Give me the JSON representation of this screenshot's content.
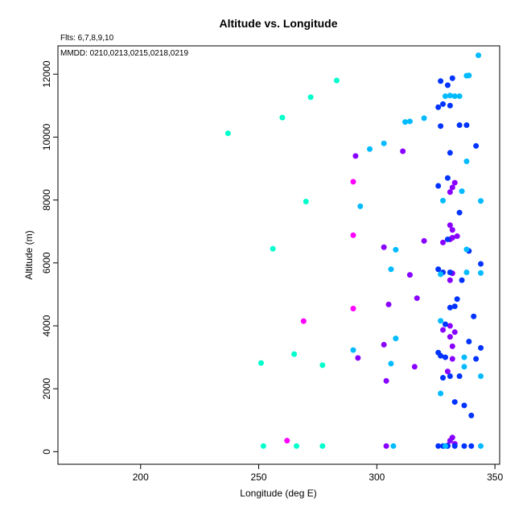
{
  "chart_data": {
    "type": "scatter",
    "title": "Altitude vs. Longitude",
    "xlabel": "Longitude (deg E)",
    "ylabel": "Altitude (m)",
    "xlim": [
      165,
      352
    ],
    "ylim": [
      -400,
      12900
    ],
    "x_ticks": [
      200,
      250,
      300,
      350
    ],
    "y_ticks": [
      0,
      2000,
      4000,
      6000,
      8000,
      10000,
      12000
    ],
    "grid": false,
    "annotations": {
      "flights": "Flts: 6,7,8,9,10",
      "dates": "MMDD: 0210,0213,0215,0218,0219"
    },
    "colors": {
      "flight_6": "#ff00ff",
      "flight_7": "#8800ff",
      "flight_8": "#0033ff",
      "flight_9": "#00bbff",
      "flight_10": "#00ffcc"
    },
    "series": [
      {
        "color_key": "flight_6",
        "points": [
          [
            262,
            350
          ],
          [
            269,
            4150
          ],
          [
            290,
            4550
          ],
          [
            290,
            6880
          ],
          [
            290,
            8580
          ]
        ]
      },
      {
        "color_key": "flight_7",
        "points": [
          [
            304,
            180
          ],
          [
            304,
            2250
          ],
          [
            303,
            3400
          ],
          [
            292,
            2980
          ],
          [
            305,
            4680
          ],
          [
            317,
            4880
          ],
          [
            314,
            5620
          ],
          [
            303,
            6500
          ],
          [
            320,
            6700
          ],
          [
            291,
            9400
          ],
          [
            311,
            9550
          ],
          [
            328,
            3870
          ],
          [
            330,
            2550
          ],
          [
            331,
            4000
          ],
          [
            332,
            3350
          ],
          [
            333,
            3800
          ],
          [
            331,
            3650
          ],
          [
            332,
            2950
          ],
          [
            316,
            2700
          ],
          [
            332,
            5670
          ],
          [
            331,
            5450
          ],
          [
            328,
            6650
          ],
          [
            332,
            6800
          ],
          [
            334,
            6850
          ],
          [
            331,
            7200
          ],
          [
            332,
            8400
          ],
          [
            331,
            8250
          ],
          [
            333,
            8550
          ],
          [
            332,
            7050
          ],
          [
            331,
            6750
          ],
          [
            332,
            450
          ],
          [
            331,
            350
          ],
          [
            333,
            250
          ],
          [
            330,
            200
          ]
        ]
      },
      {
        "color_key": "flight_8",
        "points": [
          [
            326,
            180
          ],
          [
            328,
            180
          ],
          [
            330,
            180
          ],
          [
            333,
            180
          ],
          [
            337,
            180
          ],
          [
            340,
            180
          ],
          [
            328,
            2350
          ],
          [
            329,
            3000
          ],
          [
            326,
            3150
          ],
          [
            327,
            3050
          ],
          [
            331,
            2400
          ],
          [
            335,
            2400
          ],
          [
            340,
            1150
          ],
          [
            333,
            1580
          ],
          [
            337,
            1470
          ],
          [
            342,
            2950
          ],
          [
            339,
            3500
          ],
          [
            344,
            3300
          ],
          [
            329,
            4050
          ],
          [
            331,
            4580
          ],
          [
            333,
            4620
          ],
          [
            334,
            4850
          ],
          [
            341,
            4300
          ],
          [
            326,
            5800
          ],
          [
            328,
            5700
          ],
          [
            331,
            5700
          ],
          [
            336,
            5450
          ],
          [
            339,
            6380
          ],
          [
            344,
            5970
          ],
          [
            330,
            6750
          ],
          [
            335,
            7600
          ],
          [
            326,
            8450
          ],
          [
            330,
            8700
          ],
          [
            331,
            9500
          ],
          [
            342,
            9720
          ],
          [
            326,
            10950
          ],
          [
            328,
            11050
          ],
          [
            331,
            11000
          ],
          [
            327,
            10350
          ],
          [
            335,
            10380
          ],
          [
            338,
            10380
          ],
          [
            327,
            11780
          ],
          [
            330,
            11650
          ],
          [
            332,
            11870
          ]
        ]
      },
      {
        "color_key": "flight_9",
        "points": [
          [
            307,
            180
          ],
          [
            329,
            180
          ],
          [
            344,
            180
          ],
          [
            327,
            1850
          ],
          [
            306,
            2800
          ],
          [
            337,
            2700
          ],
          [
            337,
            3000
          ],
          [
            344,
            2400
          ],
          [
            290,
            3230
          ],
          [
            308,
            3600
          ],
          [
            327,
            4160
          ],
          [
            338,
            5700
          ],
          [
            306,
            5800
          ],
          [
            344,
            5680
          ],
          [
            327,
            5640
          ],
          [
            308,
            6420
          ],
          [
            338,
            6430
          ],
          [
            293,
            7800
          ],
          [
            328,
            7980
          ],
          [
            344,
            7970
          ],
          [
            336,
            8280
          ],
          [
            297,
            9620
          ],
          [
            303,
            9800
          ],
          [
            338,
            9230
          ],
          [
            312,
            10480
          ],
          [
            314,
            10500
          ],
          [
            320,
            10600
          ],
          [
            329,
            11300
          ],
          [
            331,
            11320
          ],
          [
            333,
            11300
          ],
          [
            335,
            11300
          ],
          [
            338,
            11950
          ],
          [
            339,
            11960
          ],
          [
            343,
            12600
          ]
        ]
      },
      {
        "color_key": "flight_10",
        "points": [
          [
            252,
            180
          ],
          [
            266,
            180
          ],
          [
            277,
            180
          ],
          [
            251,
            2820
          ],
          [
            265,
            3100
          ],
          [
            277,
            2750
          ],
          [
            256,
            6450
          ],
          [
            270,
            7950
          ],
          [
            237,
            10120
          ],
          [
            260,
            10620
          ],
          [
            272,
            11270
          ],
          [
            283,
            11800
          ]
        ]
      }
    ]
  }
}
